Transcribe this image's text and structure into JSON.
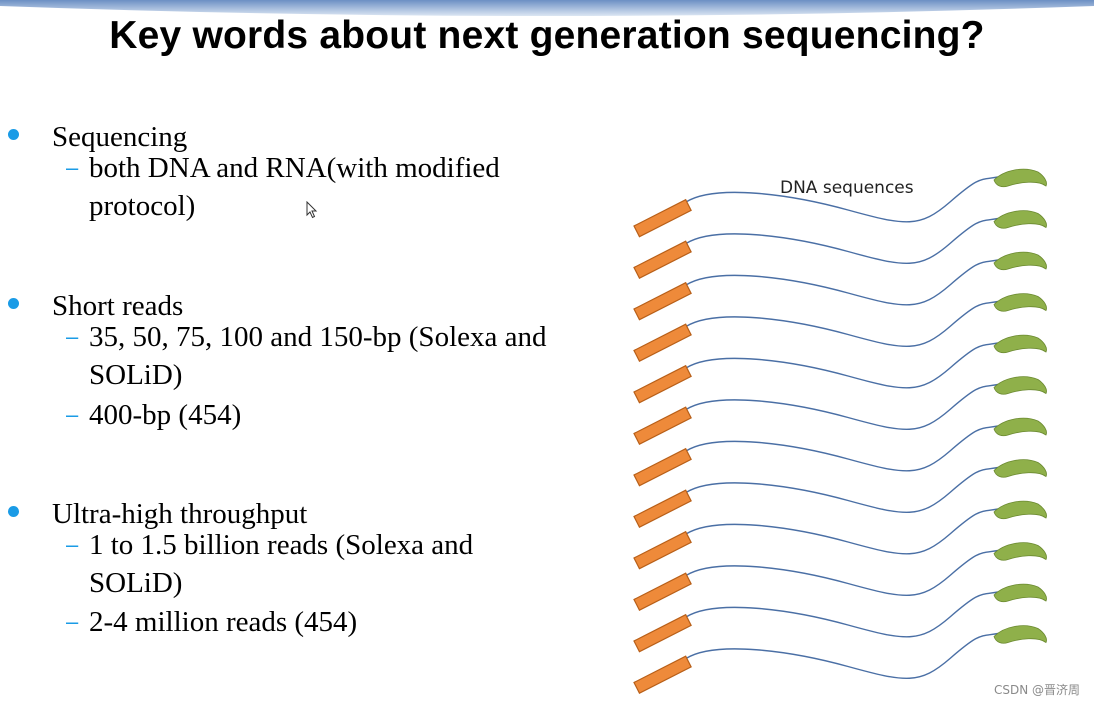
{
  "slide": {
    "title": "Key words about next generation sequencing?",
    "bullets": [
      {
        "label": "Sequencing",
        "subs": [
          "both DNA and RNA(with modified protocol)"
        ]
      },
      {
        "label": "Short reads",
        "subs": [
          "35, 50, 75, 100 and 150-bp (Solexa and SOLiD)",
          "400-bp (454)"
        ]
      },
      {
        "label": "Ultra-high throughput",
        "subs": [
          "1 to 1.5 billion reads (Solexa and SOLiD)",
          "2-4 million reads (454)"
        ]
      }
    ]
  },
  "diagram": {
    "label": "DNA sequences",
    "strand_count": 12,
    "colors": {
      "adapter_left": "#ee8a3a",
      "adapter_right": "#8fb04a",
      "strand": "#4a6fa5",
      "bullet": "#1a9be6"
    }
  },
  "watermark": "CSDN @晋济周"
}
